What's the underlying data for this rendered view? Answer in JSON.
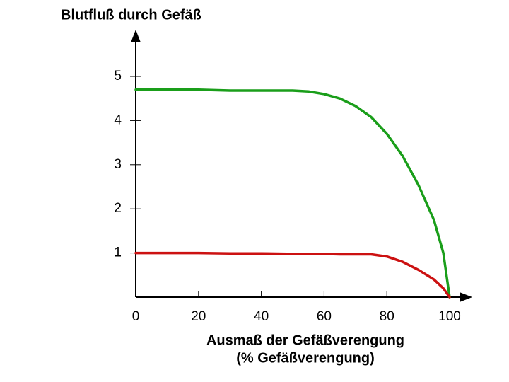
{
  "chart_data": {
    "type": "line",
    "ylabel": "Blutfluß durch Gefäß",
    "xlabel": [
      "Ausmaß der Gefäßverengung",
      "(% Gefäßverengung)"
    ],
    "x": [
      0,
      10,
      20,
      30,
      40,
      50,
      55,
      60,
      65,
      70,
      75,
      80,
      85,
      90,
      95,
      98,
      100
    ],
    "series": [
      {
        "color": "#1a9e1a",
        "values": [
          4.7,
          4.7,
          4.7,
          4.68,
          4.68,
          4.68,
          4.66,
          4.6,
          4.5,
          4.33,
          4.08,
          3.7,
          3.2,
          2.55,
          1.75,
          1.0,
          0
        ]
      },
      {
        "color": "#cc1111",
        "values": [
          1.0,
          1.0,
          1.0,
          0.99,
          0.99,
          0.98,
          0.98,
          0.98,
          0.97,
          0.97,
          0.97,
          0.92,
          0.8,
          0.62,
          0.4,
          0.2,
          0
        ]
      }
    ],
    "xlim": [
      0,
      106
    ],
    "xticks": [
      0,
      20,
      40,
      60,
      80,
      100
    ],
    "ylim": [
      0,
      6
    ],
    "yticks": [
      1,
      2,
      3,
      4,
      5
    ],
    "grid": false
  }
}
